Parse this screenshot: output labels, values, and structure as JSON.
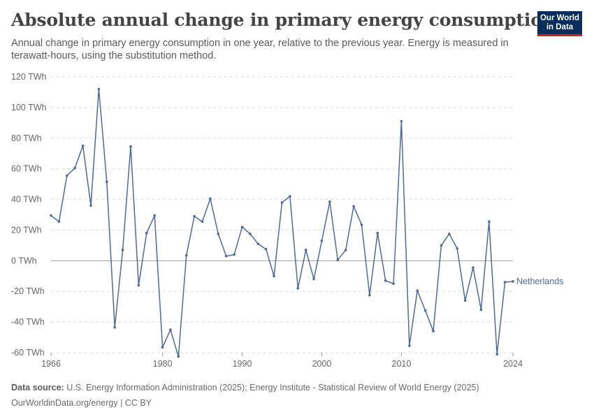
{
  "header": {
    "title": "Absolute annual change in primary energy consumption",
    "subtitle": "Annual change in primary energy consumption in one year, relative to the previous year. Energy is measured in terawatt-hours, using the substitution method."
  },
  "logo": {
    "line1": "Our World",
    "line2": "in Data",
    "bg_color": "#0a2e5c",
    "accent_color": "#ce261e"
  },
  "footer": {
    "source_label": "Data source:",
    "source_text": "U.S. Energy Information Administration (2025); Energy Institute - Statistical Review of World Energy (2025)",
    "url_text": "OurWorldinData.org/energy | CC BY"
  },
  "chart_data": {
    "type": "line",
    "title": "Absolute annual change in primary energy consumption",
    "xlabel": "",
    "ylabel": "",
    "xlim": [
      1966,
      2024
    ],
    "ylim": [
      -60,
      120
    ],
    "x_ticks": [
      1966,
      1980,
      1990,
      2000,
      2010,
      2024
    ],
    "y_ticks": [
      -60,
      -40,
      -20,
      0,
      20,
      40,
      60,
      80,
      100,
      120
    ],
    "y_tick_labels": [
      "-60 TWh",
      "-40 TWh",
      "-20 TWh",
      "0 TWh",
      "20 TWh",
      "40 TWh",
      "60 TWh",
      "80 TWh",
      "100 TWh",
      "120 TWh"
    ],
    "grid": true,
    "line_color": "#4c6a9c",
    "series": [
      {
        "name": "Netherlands",
        "x": [
          1966,
          1967,
          1968,
          1969,
          1970,
          1971,
          1972,
          1973,
          1974,
          1975,
          1976,
          1977,
          1978,
          1979,
          1980,
          1981,
          1982,
          1983,
          1984,
          1985,
          1986,
          1987,
          1988,
          1989,
          1990,
          1991,
          1992,
          1993,
          1994,
          1995,
          1996,
          1997,
          1998,
          1999,
          2000,
          2001,
          2002,
          2003,
          2004,
          2005,
          2006,
          2007,
          2008,
          2009,
          2010,
          2011,
          2012,
          2013,
          2014,
          2015,
          2016,
          2017,
          2018,
          2019,
          2020,
          2021,
          2022,
          2023,
          2024
        ],
        "y": [
          29.5,
          25.5,
          55.5,
          60.5,
          75,
          36,
          112,
          51.5,
          -43.5,
          7,
          74.5,
          -16,
          18,
          29.5,
          -56.5,
          -45,
          -62.5,
          3.5,
          29,
          25.5,
          40.5,
          17.5,
          3,
          4,
          22,
          17.5,
          11,
          7.5,
          -10,
          38,
          42,
          -18,
          7,
          -12,
          13,
          38.5,
          0.5,
          7,
          35.5,
          23.5,
          -22.5,
          18,
          -13,
          -15,
          91,
          -55.5,
          -19.5,
          -32.5,
          -46,
          10,
          17.5,
          8,
          -26,
          -4.5,
          -32,
          25.5,
          -61,
          -14,
          -13.5
        ]
      }
    ]
  }
}
